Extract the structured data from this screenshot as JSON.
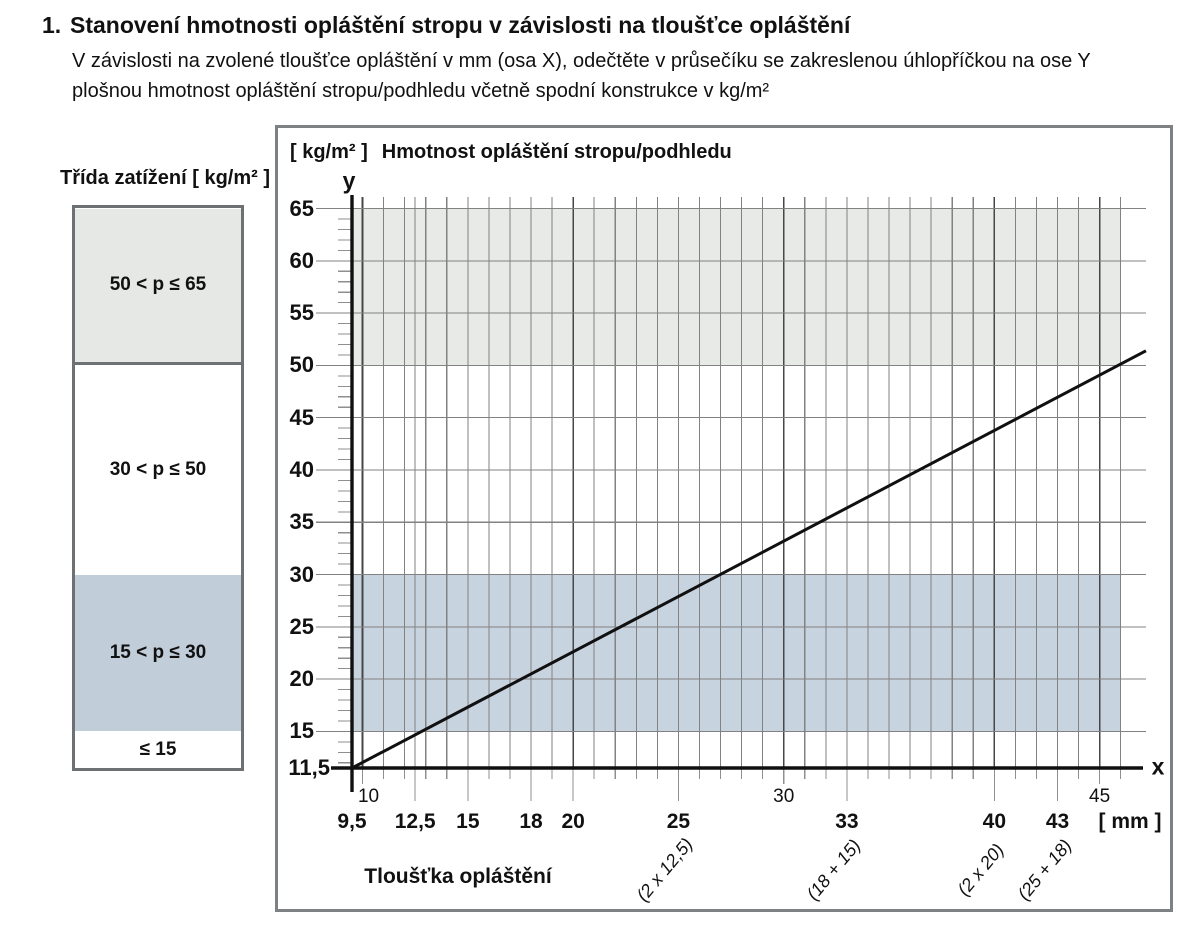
{
  "header": {
    "number": "1.",
    "title": "Stanovení hmotnosti opláštění stropu v závislosti na tloušťce opláštění",
    "subtitle_lines": [
      "V závislosti na zvolené tloušťce opláštění v mm (osa X), odečtěte v průsečíku se zakreslenou úhlopříčkou na ose Y",
      "plošnou hmotnost opláštění stropu/podhledu včetně spodní konstrukce v kg/m²"
    ]
  },
  "legend": {
    "title": "Třída zatížení [ kg/m² ]",
    "classes": [
      {
        "label": "50 < p ≤  65",
        "from": 50,
        "to": 65,
        "fill": "#e6e8e5",
        "divider_below": true
      },
      {
        "label": "30 < p ≤  50",
        "from": 30,
        "to": 50,
        "fill": "#ffffff",
        "divider_below": false
      },
      {
        "label": "15 < p ≤  30",
        "from": 15,
        "to": 30,
        "fill": "#c2cdda",
        "divider_below": false
      },
      {
        "label": "≤  15",
        "from": 11.5,
        "to": 15,
        "fill": "#ffffff",
        "divider_below": false
      }
    ]
  },
  "chart_data": {
    "type": "line",
    "title": "Hmotnost opláštění stropu/podhledu",
    "y_unit": "[ kg/m² ]",
    "x_unit": "[ mm ]",
    "xlabel": "Tloušťka opláštění",
    "x_letter": "x",
    "y_letter": "y",
    "xlim": [
      9.5,
      47.5
    ],
    "ylim": [
      11.5,
      66.5
    ],
    "grid": true,
    "y_ticks": [
      {
        "v": 65,
        "label": "65"
      },
      {
        "v": 60,
        "label": "60"
      },
      {
        "v": 55,
        "label": "55"
      },
      {
        "v": 50,
        "label": "50"
      },
      {
        "v": 45,
        "label": "45"
      },
      {
        "v": 40,
        "label": "40"
      },
      {
        "v": 35,
        "label": "35"
      },
      {
        "v": 30,
        "label": "30"
      },
      {
        "v": 25,
        "label": "25"
      },
      {
        "v": 20,
        "label": "20"
      },
      {
        "v": 15,
        "label": "15"
      },
      {
        "v": 11.5,
        "label": "11,5"
      }
    ],
    "x_ticks_minor_labeled": [
      {
        "v": 10,
        "label": "10",
        "dx": 6
      },
      {
        "v": 30,
        "label": "30",
        "dx": 0
      },
      {
        "v": 45,
        "label": "45",
        "dx": 0
      }
    ],
    "x_ticks_major": [
      {
        "v": 9.5,
        "label": "9,5"
      },
      {
        "v": 12.5,
        "label": "12,5"
      },
      {
        "v": 15,
        "label": "15"
      },
      {
        "v": 18,
        "label": "18"
      },
      {
        "v": 20,
        "label": "20"
      },
      {
        "v": 25,
        "label": "25"
      },
      {
        "v": 33,
        "label": "33"
      },
      {
        "v": 40,
        "label": "40"
      },
      {
        "v": 43,
        "label": "43"
      }
    ],
    "grid_mm": [
      10,
      11,
      12,
      12.5,
      13,
      14,
      15,
      16,
      17,
      18,
      19,
      20,
      21,
      22,
      23,
      24,
      25,
      26,
      27,
      28,
      29,
      30,
      31,
      32,
      33,
      34,
      35,
      36,
      37,
      38,
      39,
      40,
      41,
      42,
      43,
      44,
      45,
      46
    ],
    "emphasized_grid_mm": [
      10,
      20,
      30,
      40,
      45
    ],
    "bands": [
      {
        "name": "band-50-65",
        "from": 50,
        "to": 65,
        "fill": "#e8eae7"
      },
      {
        "name": "band-15-30",
        "from": 15,
        "to": 30,
        "fill": "#c8d3e0"
      }
    ],
    "diagonal": {
      "points": [
        [
          9.5,
          11.5
        ],
        [
          47.2,
          51.4
        ]
      ]
    },
    "annotations": [
      {
        "v": 25,
        "label": "(2 x 12,5)"
      },
      {
        "v": 33,
        "label": "(18 + 15)"
      },
      {
        "v": 40,
        "label": "(2 x 20)"
      },
      {
        "v": 43,
        "label": "(25 + 18)"
      }
    ],
    "colors": {
      "axis": "#101010",
      "grid": "#828282",
      "grid_emphasis": "#474747",
      "tick": "#8f8f8f",
      "dropline": "#8f8f8f",
      "diagonal": "#101010"
    }
  }
}
